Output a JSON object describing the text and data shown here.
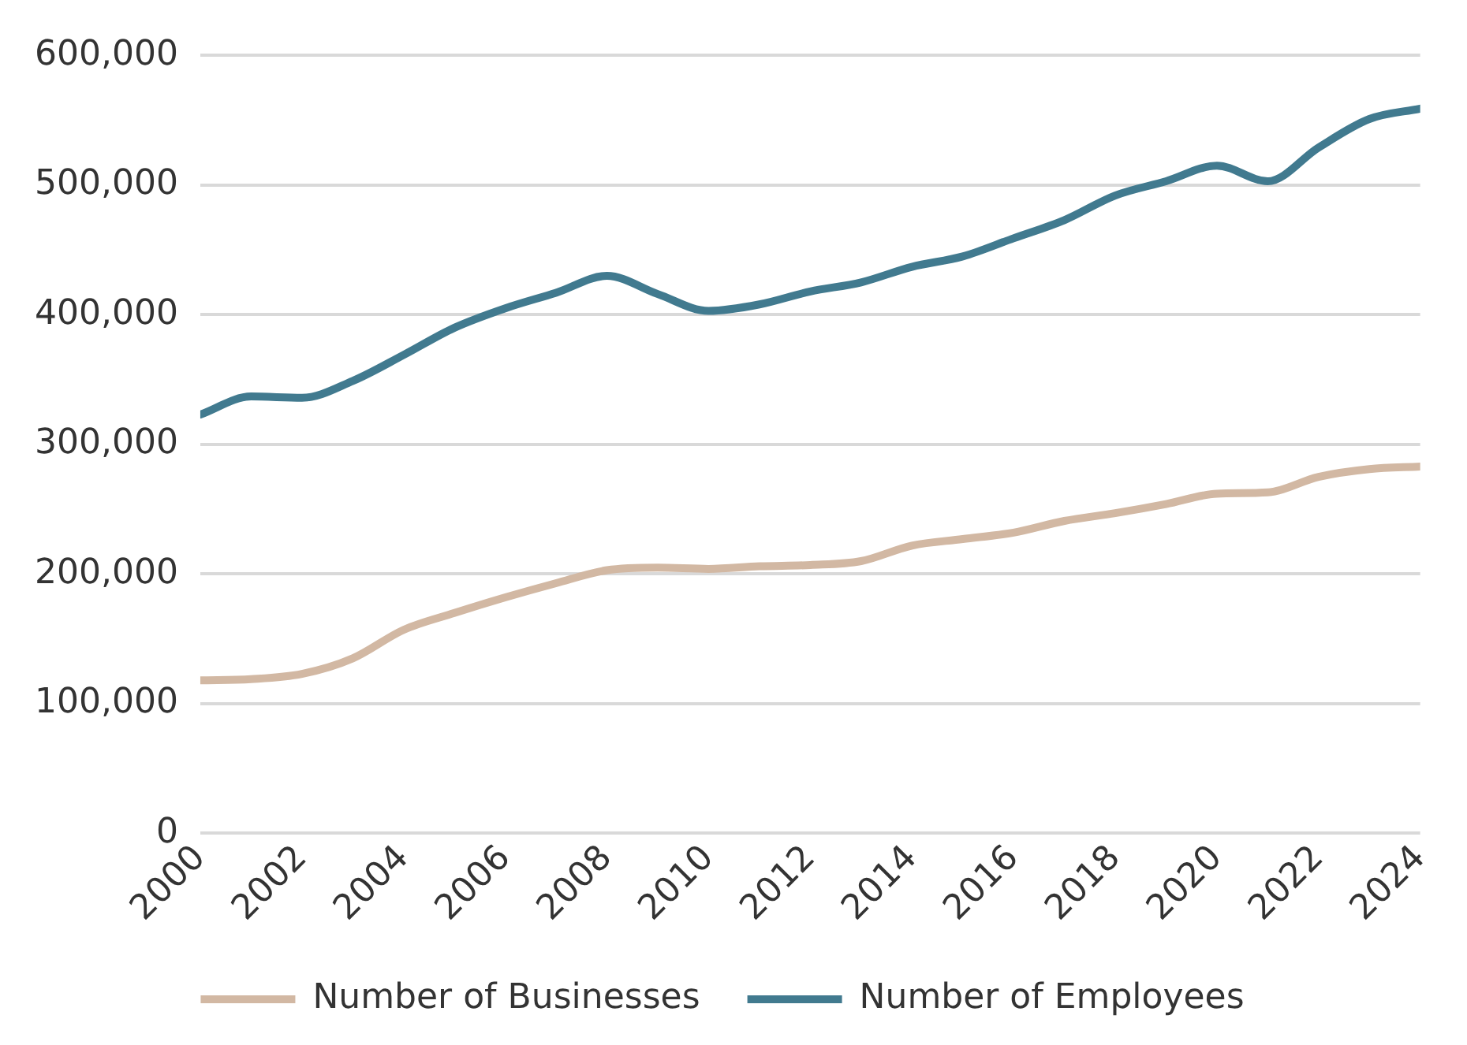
{
  "chart_data": {
    "type": "line",
    "x": [
      2000,
      2001,
      2002,
      2003,
      2004,
      2005,
      2006,
      2007,
      2008,
      2009,
      2010,
      2011,
      2012,
      2013,
      2014,
      2015,
      2016,
      2017,
      2018,
      2019,
      2020,
      2021,
      2022,
      2023,
      2024
    ],
    "series": [
      {
        "name": "Number of Businesses",
        "color": "#d2b8a3",
        "values": [
          118000,
          119000,
          123000,
          135000,
          157000,
          170000,
          182000,
          193000,
          203000,
          205000,
          204000,
          206000,
          207000,
          210000,
          222000,
          227000,
          232000,
          241000,
          247000,
          254000,
          262000,
          263000,
          275000,
          281000,
          283000
        ]
      },
      {
        "name": "Number of Employees",
        "color": "#417a8f",
        "values": [
          323000,
          337000,
          336000,
          349000,
          369000,
          390000,
          405000,
          417000,
          430000,
          416000,
          403000,
          408000,
          418000,
          425000,
          437000,
          445000,
          459000,
          473000,
          492000,
          503000,
          515000,
          503000,
          529000,
          551000,
          559000
        ]
      }
    ],
    "xlim": [
      2000,
      2024
    ],
    "xticks": [
      2000,
      2002,
      2004,
      2006,
      2008,
      2010,
      2012,
      2014,
      2016,
      2018,
      2020,
      2022,
      2024
    ],
    "ylim": [
      0,
      600000
    ],
    "yticks": [
      {
        "value": 0,
        "label": "0"
      },
      {
        "value": 100000,
        "label": "100,000"
      },
      {
        "value": 200000,
        "label": "200,000"
      },
      {
        "value": 300000,
        "label": "300,000"
      },
      {
        "value": 400000,
        "label": "400,000"
      },
      {
        "value": 500000,
        "label": "500,000"
      },
      {
        "value": 600000,
        "label": "600,000"
      }
    ],
    "grid": "y",
    "legend": "bottom",
    "marker": "none",
    "line_style": "solid"
  }
}
